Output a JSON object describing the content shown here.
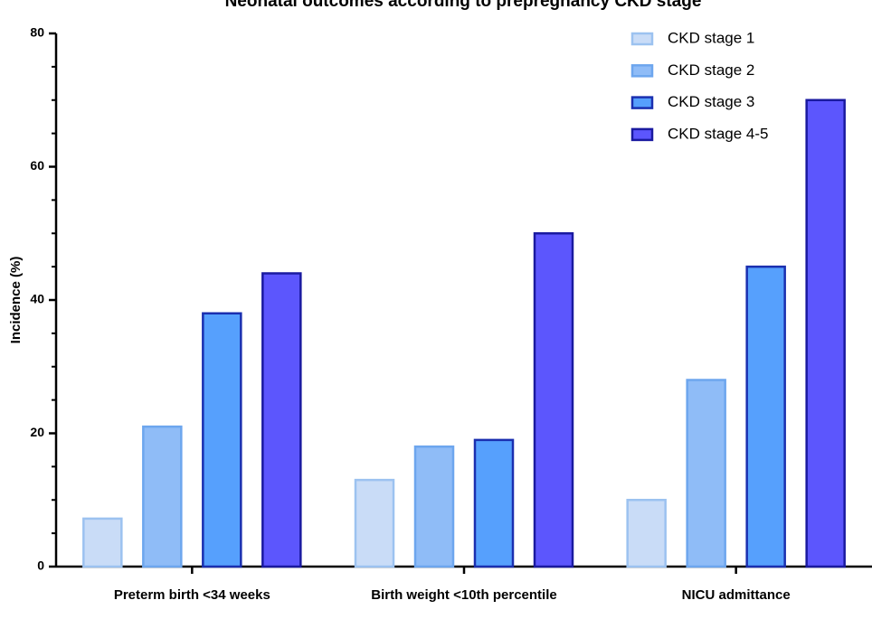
{
  "chart_data": {
    "type": "bar",
    "title": "Neonatal outcomes according to prepregnancy CKD stage",
    "y_label": "Incidence  (%)",
    "categories": [
      "Preterm birth <34 weeks",
      "Birth weight <10th percentile",
      "NICU admittance"
    ],
    "series": [
      {
        "name": "CKD stage 1",
        "color": "#c9dcf7",
        "edge": "#9cc2f0",
        "values": [
          7.2,
          13,
          10
        ]
      },
      {
        "name": "CKD stage 2",
        "color": "#8fbcf7",
        "edge": "#6da6ee",
        "values": [
          21,
          18,
          28
        ]
      },
      {
        "name": "CKD stage 3",
        "color": "#56a0fd",
        "edge": "#1a2fb0",
        "values": [
          38,
          19,
          45
        ]
      },
      {
        "name": "CKD stage 4-5",
        "color": "#5c56fd",
        "edge": "#1a1aa0",
        "values": [
          44,
          50,
          70
        ]
      }
    ],
    "ylim": [
      0,
      80
    ],
    "yticks": [
      0,
      20,
      40,
      60,
      80
    ],
    "legend": "upper right"
  }
}
